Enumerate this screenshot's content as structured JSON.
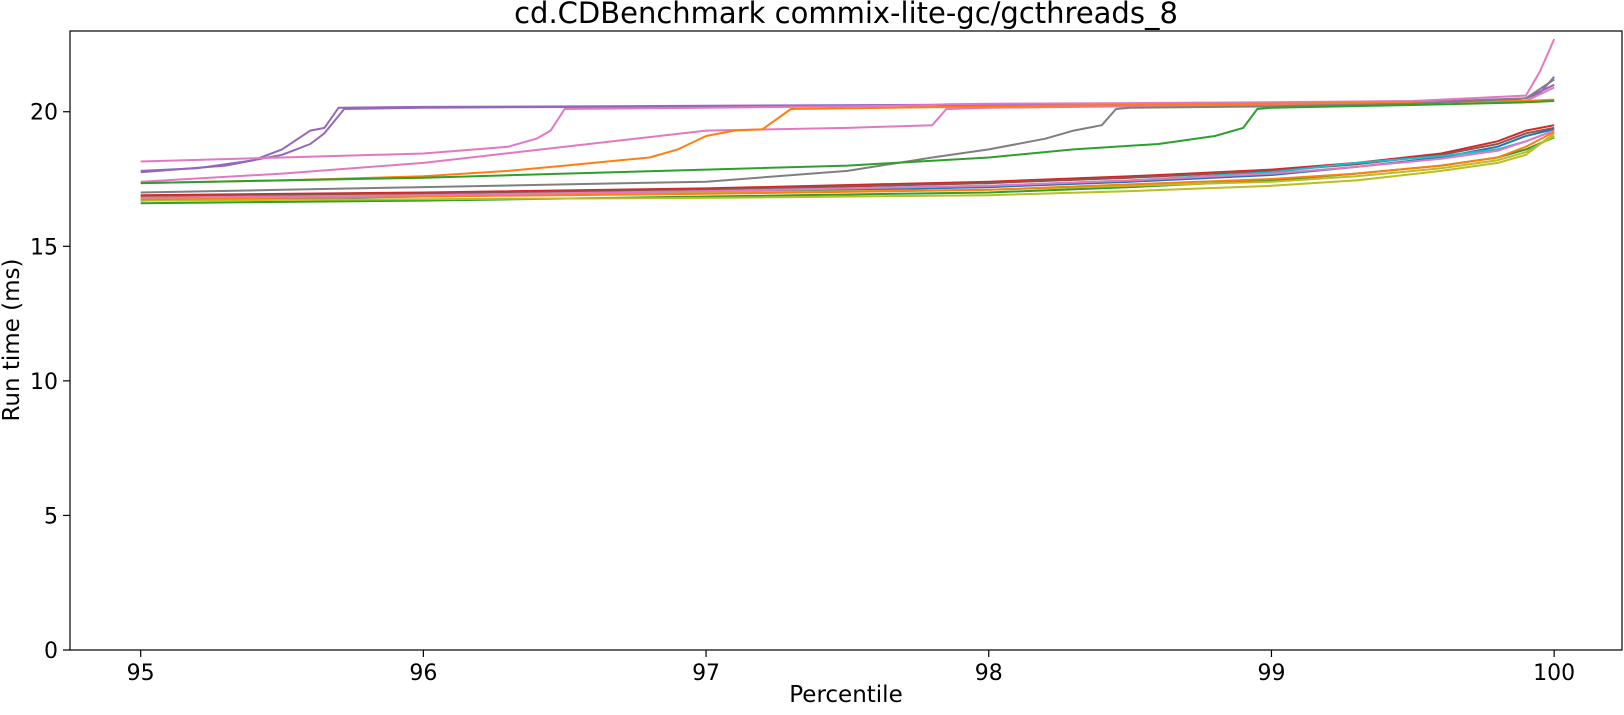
{
  "chart_data": {
    "type": "line",
    "title": "cd.CDBenchmark commix-lite-gc/gcthreads_8",
    "xlabel": "Percentile",
    "ylabel": "Run time (ms)",
    "xlim": [
      94.75,
      100.24
    ],
    "ylim": [
      0,
      23.0
    ],
    "x_ticks": [
      95,
      96,
      97,
      98,
      99,
      100
    ],
    "y_ticks": [
      0,
      5,
      10,
      15,
      20
    ],
    "grid": false,
    "legend": "none",
    "series": [
      {
        "color": "#9467bd",
        "x": [
          95,
          95.2,
          95.4,
          95.5,
          95.6,
          95.65,
          95.7,
          96,
          97,
          98,
          99,
          99.5,
          99.8,
          99.9,
          99.95,
          100
        ],
        "y": [
          17.8,
          17.9,
          18.2,
          18.6,
          19.3,
          19.4,
          20.15,
          20.18,
          20.22,
          20.27,
          20.3,
          20.33,
          20.4,
          20.5,
          20.7,
          21.3
        ]
      },
      {
        "color": "#9467bd",
        "x": [
          95,
          95.3,
          95.5,
          95.55,
          95.6,
          95.65,
          95.72,
          96,
          97,
          98,
          99,
          99.5,
          99.9,
          100
        ],
        "y": [
          17.75,
          18.0,
          18.4,
          18.6,
          18.8,
          19.2,
          20.1,
          20.15,
          20.2,
          20.25,
          20.3,
          20.35,
          20.5,
          21.0
        ]
      },
      {
        "color": "#e377c2",
        "x": [
          95,
          95.5,
          96,
          96.3,
          96.4,
          96.45,
          96.5,
          97,
          97.5,
          97.8,
          97.85,
          98,
          98.5,
          99,
          99.5,
          99.9,
          99.95,
          100
        ],
        "y": [
          18.15,
          18.3,
          18.45,
          18.7,
          19.0,
          19.3,
          20.1,
          20.15,
          20.2,
          20.25,
          20.28,
          20.3,
          20.32,
          20.35,
          20.4,
          20.6,
          21.5,
          22.7
        ]
      },
      {
        "color": "#e377c2",
        "x": [
          95,
          95.5,
          96,
          96.5,
          97,
          97.5,
          97.8,
          97.85,
          98,
          98.5,
          99,
          99.5,
          99.9,
          100
        ],
        "y": [
          17.4,
          17.7,
          18.1,
          18.7,
          19.3,
          19.4,
          19.5,
          20.1,
          20.15,
          20.2,
          20.25,
          20.35,
          20.4,
          20.9
        ]
      },
      {
        "color": "#ff7f0e",
        "x": [
          95,
          95.5,
          96,
          96.3,
          96.5,
          96.8,
          96.9,
          97,
          97.1,
          97.2,
          97.3,
          98,
          99,
          99.5,
          99.9,
          100
        ],
        "y": [
          17.35,
          17.45,
          17.6,
          17.8,
          18.0,
          18.3,
          18.6,
          19.1,
          19.3,
          19.35,
          20.1,
          20.2,
          20.3,
          20.35,
          20.4,
          20.45
        ]
      },
      {
        "color": "#7f7f7f",
        "x": [
          95,
          95.5,
          96,
          96.5,
          97,
          97.5,
          97.8,
          98,
          98.2,
          98.3,
          98.4,
          98.45,
          98.5,
          99,
          99.5,
          99.9,
          100
        ],
        "y": [
          17.0,
          17.1,
          17.2,
          17.3,
          17.4,
          17.8,
          18.3,
          18.6,
          19.0,
          19.3,
          19.5,
          20.1,
          20.15,
          20.2,
          20.3,
          20.5,
          21.2
        ]
      },
      {
        "color": "#2ca02c",
        "x": [
          95,
          95.5,
          96,
          96.5,
          97,
          97.5,
          98,
          98.3,
          98.6,
          98.8,
          98.9,
          98.95,
          99,
          99.5,
          99.9,
          100
        ],
        "y": [
          17.35,
          17.45,
          17.55,
          17.7,
          17.85,
          18.0,
          18.3,
          18.6,
          18.8,
          19.1,
          19.4,
          20.1,
          20.15,
          20.25,
          20.35,
          20.4
        ]
      },
      {
        "color": "#d62728",
        "x": [
          95,
          96,
          97,
          98,
          98.5,
          99,
          99.3,
          99.6,
          99.8,
          99.9,
          100
        ],
        "y": [
          16.9,
          17.0,
          17.15,
          17.4,
          17.6,
          17.85,
          18.1,
          18.45,
          18.9,
          19.3,
          19.5
        ]
      },
      {
        "color": "#8c564b",
        "x": [
          95,
          96,
          97,
          98,
          98.5,
          99,
          99.3,
          99.6,
          99.8,
          99.9,
          100
        ],
        "y": [
          16.85,
          16.95,
          17.1,
          17.35,
          17.55,
          17.8,
          18.05,
          18.4,
          18.8,
          19.2,
          19.4
        ]
      },
      {
        "color": "#1f77b4",
        "x": [
          95,
          96,
          97,
          98,
          98.5,
          99,
          99.3,
          99.6,
          99.8,
          99.9,
          100
        ],
        "y": [
          16.7,
          16.85,
          17.0,
          17.2,
          17.4,
          17.65,
          17.95,
          18.3,
          18.7,
          19.1,
          19.35
        ]
      },
      {
        "color": "#17becf",
        "x": [
          95,
          96,
          97,
          98,
          98.5,
          99,
          99.3,
          99.6,
          99.8,
          99.9,
          100
        ],
        "y": [
          16.75,
          16.9,
          17.05,
          17.25,
          17.45,
          17.75,
          18.1,
          18.35,
          18.6,
          18.9,
          19.3
        ]
      },
      {
        "color": "#2ca02c",
        "x": [
          95,
          96,
          97,
          98,
          98.5,
          99,
          99.3,
          99.6,
          99.8,
          99.9,
          100
        ],
        "y": [
          16.6,
          16.7,
          16.85,
          17.0,
          17.2,
          17.45,
          17.7,
          18.0,
          18.3,
          18.6,
          19.05
        ]
      },
      {
        "color": "#bcbd22",
        "x": [
          95,
          96,
          97,
          98,
          98.5,
          99,
          99.3,
          99.6,
          99.8,
          99.9,
          100
        ],
        "y": [
          16.7,
          16.75,
          16.8,
          16.9,
          17.05,
          17.25,
          17.45,
          17.8,
          18.1,
          18.4,
          19.2
        ]
      },
      {
        "color": "#bcbd22",
        "x": [
          95,
          96,
          97,
          98,
          98.5,
          99,
          99.3,
          99.6,
          99.8,
          99.9,
          100
        ],
        "y": [
          16.8,
          16.9,
          17.0,
          17.1,
          17.25,
          17.4,
          17.6,
          17.9,
          18.2,
          18.5,
          19.1
        ]
      },
      {
        "color": "#ff7f0e",
        "x": [
          95,
          96,
          97,
          98,
          98.5,
          99,
          99.3,
          99.6,
          99.8,
          99.9,
          100
        ],
        "y": [
          16.75,
          16.85,
          16.95,
          17.1,
          17.3,
          17.5,
          17.7,
          18.0,
          18.3,
          18.7,
          19.25
        ]
      },
      {
        "color": "#e377c2",
        "x": [
          95,
          96,
          97,
          98,
          98.5,
          99,
          99.3,
          99.6,
          99.8,
          99.9,
          100
        ],
        "y": [
          16.8,
          16.9,
          17.05,
          17.25,
          17.45,
          17.7,
          17.95,
          18.25,
          18.55,
          18.9,
          19.3
        ]
      }
    ]
  }
}
